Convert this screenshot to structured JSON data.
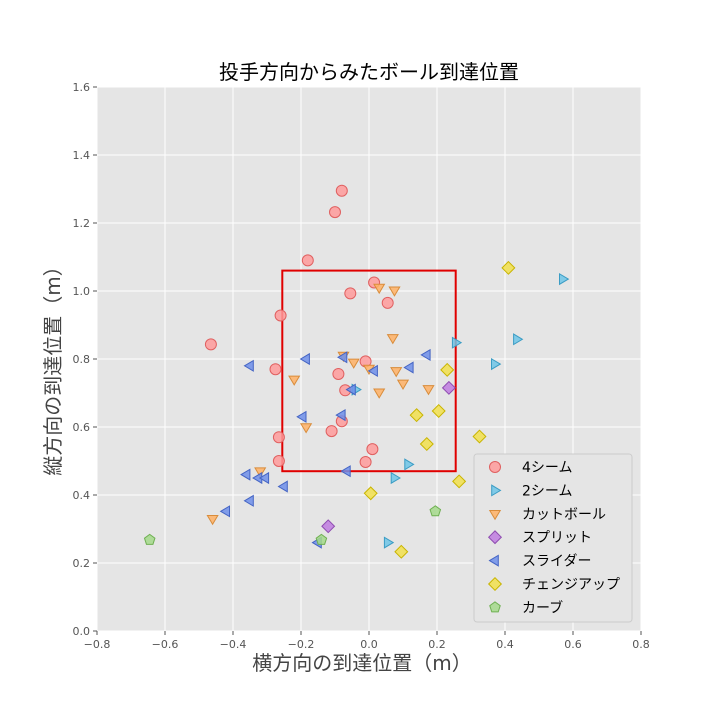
{
  "chart_data": {
    "type": "scatter",
    "title": "投手方向からみたボール到達位置",
    "xlabel": "横方向の到達位置（m）",
    "ylabel": "縦方向の到達位置（m）",
    "xlim": [
      -0.8,
      0.8
    ],
    "ylim": [
      0.0,
      1.6
    ],
    "xticks": [
      "−0.8",
      "−0.6",
      "−0.4",
      "−0.2",
      "0.0",
      "0.2",
      "0.4",
      "0.6",
      "0.8"
    ],
    "yticks": [
      "0.0",
      "0.2",
      "0.4",
      "0.6",
      "0.8",
      "1.0",
      "1.2",
      "1.4",
      "1.6"
    ],
    "grid": true,
    "legend_position": "bottom-right",
    "strike_zone": {
      "x": [
        -0.255,
        0.255
      ],
      "y": [
        0.47,
        1.06
      ],
      "color": "#e00000"
    },
    "series": [
      {
        "name": "4シーム",
        "marker": "circle",
        "color": "#ff9b9b",
        "edge": "#e06060",
        "points": [
          [
            -0.08,
            1.295
          ],
          [
            -0.1,
            1.232
          ],
          [
            -0.18,
            1.09
          ],
          [
            -0.055,
            0.993
          ],
          [
            0.015,
            1.025
          ],
          [
            0.055,
            0.965
          ],
          [
            -0.26,
            0.928
          ],
          [
            -0.465,
            0.843
          ],
          [
            -0.275,
            0.77
          ],
          [
            -0.01,
            0.793
          ],
          [
            -0.09,
            0.756
          ],
          [
            -0.07,
            0.708
          ],
          [
            -0.08,
            0.617
          ],
          [
            -0.11,
            0.588
          ],
          [
            -0.265,
            0.57
          ],
          [
            0.01,
            0.535
          ],
          [
            -0.265,
            0.5
          ],
          [
            -0.01,
            0.497
          ]
        ]
      },
      {
        "name": "2シーム",
        "marker": "triangle-right",
        "color": "#6ec6e8",
        "edge": "#3a9cc4",
        "points": [
          [
            0.57,
            1.035
          ],
          [
            0.435,
            0.858
          ],
          [
            0.255,
            0.848
          ],
          [
            0.37,
            0.785
          ],
          [
            -0.04,
            0.71
          ],
          [
            0.115,
            0.49
          ],
          [
            0.075,
            0.45
          ],
          [
            0.055,
            0.26
          ]
        ]
      },
      {
        "name": "カットボール",
        "marker": "triangle-down",
        "color": "#ffb266",
        "edge": "#d98c3a",
        "points": [
          [
            0.03,
            1.01
          ],
          [
            0.075,
            1.002
          ],
          [
            0.07,
            0.862
          ],
          [
            -0.075,
            0.81
          ],
          [
            -0.045,
            0.79
          ],
          [
            0.0,
            0.772
          ],
          [
            0.08,
            0.765
          ],
          [
            -0.22,
            0.74
          ],
          [
            0.1,
            0.728
          ],
          [
            0.175,
            0.712
          ],
          [
            0.03,
            0.702
          ],
          [
            -0.185,
            0.6
          ],
          [
            -0.32,
            0.47
          ],
          [
            -0.46,
            0.33
          ]
        ]
      },
      {
        "name": "スプリット",
        "marker": "diamond",
        "color": "#c07ce0",
        "edge": "#8e4cb0",
        "points": [
          [
            0.235,
            0.715
          ],
          [
            -0.12,
            0.308
          ]
        ]
      },
      {
        "name": "スライダー",
        "marker": "triangle-left",
        "color": "#6e8fea",
        "edge": "#4464c4",
        "points": [
          [
            -0.35,
            0.78
          ],
          [
            -0.185,
            0.8
          ],
          [
            -0.075,
            0.805
          ],
          [
            0.17,
            0.812
          ],
          [
            0.12,
            0.775
          ],
          [
            0.015,
            0.765
          ],
          [
            -0.05,
            0.71
          ],
          [
            -0.195,
            0.63
          ],
          [
            -0.08,
            0.635
          ],
          [
            -0.36,
            0.46
          ],
          [
            -0.325,
            0.45
          ],
          [
            -0.305,
            0.45
          ],
          [
            -0.25,
            0.425
          ],
          [
            -0.065,
            0.47
          ],
          [
            -0.35,
            0.383
          ],
          [
            -0.42,
            0.352
          ],
          [
            -0.15,
            0.26
          ]
        ]
      },
      {
        "name": "チェンジアップ",
        "marker": "diamond",
        "color": "#f2e04d",
        "edge": "#c8b400",
        "points": [
          [
            0.41,
            1.068
          ],
          [
            0.23,
            0.768
          ],
          [
            0.14,
            0.635
          ],
          [
            0.205,
            0.647
          ],
          [
            0.17,
            0.55
          ],
          [
            0.325,
            0.572
          ],
          [
            0.265,
            0.44
          ],
          [
            0.005,
            0.405
          ],
          [
            0.095,
            0.233
          ]
        ]
      },
      {
        "name": "カーブ",
        "marker": "pentagon",
        "color": "#a4d98b",
        "edge": "#6fb052",
        "points": [
          [
            -0.645,
            0.268
          ],
          [
            -0.14,
            0.268
          ],
          [
            0.195,
            0.352
          ]
        ]
      }
    ]
  }
}
